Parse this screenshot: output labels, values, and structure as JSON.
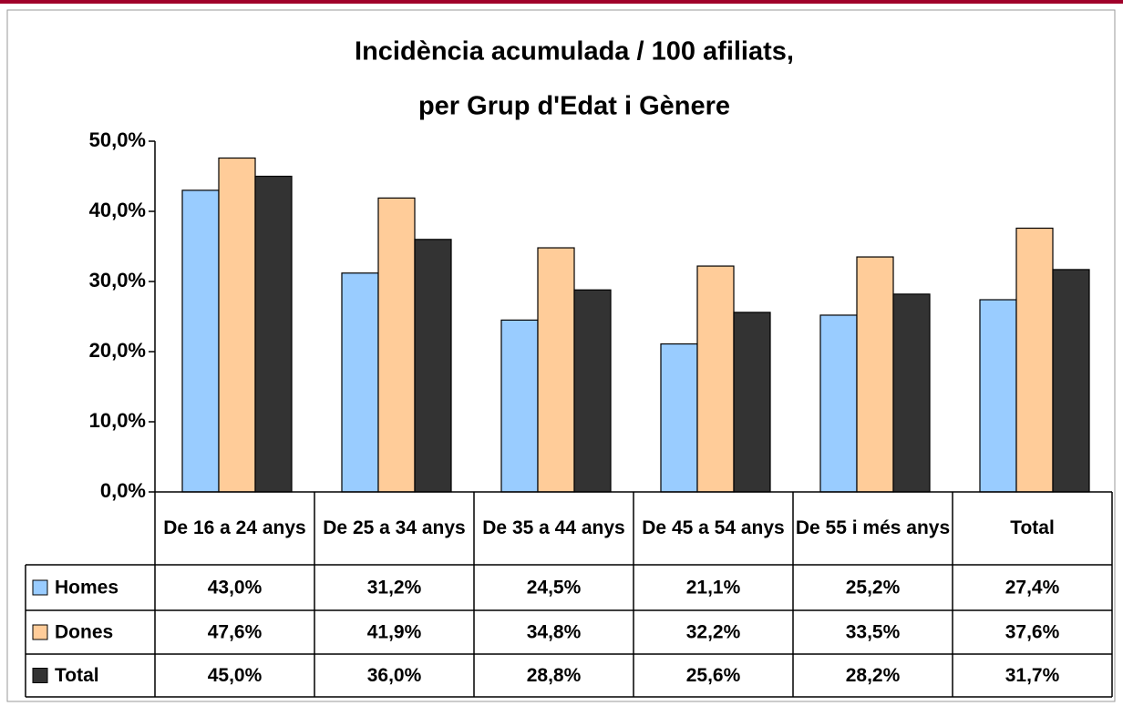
{
  "chart_data": {
    "type": "bar",
    "title": [
      "Incidència acumulada / 100 afiliats,",
      "per Grup d'Edat i Gènere"
    ],
    "categories": [
      "De 16 a 24 anys",
      "De 25 a 34 anys",
      "De 35 a 44 anys",
      "De 45 a 54 anys",
      "De 55 i més anys",
      "Total"
    ],
    "series": [
      {
        "name": "Homes",
        "color": "#99ccff",
        "values": [
          43.0,
          31.2,
          24.5,
          21.1,
          25.2,
          27.4
        ],
        "value_labels": [
          "43,0%",
          "31,2%",
          "24,5%",
          "21,1%",
          "25,2%",
          "27,4%"
        ]
      },
      {
        "name": "Dones",
        "color": "#ffcc99",
        "values": [
          47.6,
          41.9,
          34.8,
          32.2,
          33.5,
          37.6
        ],
        "value_labels": [
          "47,6%",
          "41,9%",
          "34,8%",
          "32,2%",
          "33,5%",
          "37,6%"
        ]
      },
      {
        "name": "Total",
        "color": "#333333",
        "values": [
          45.0,
          36.0,
          28.8,
          25.6,
          28.2,
          31.7
        ],
        "value_labels": [
          "45,0%",
          "36,0%",
          "28,8%",
          "25,6%",
          "28,2%",
          "31,7%"
        ]
      }
    ],
    "ylim": [
      0,
      50
    ],
    "yticks": [
      {
        "value": 0,
        "label": "0,0%"
      },
      {
        "value": 10,
        "label": "10,0%"
      },
      {
        "value": 20,
        "label": "20,0%"
      },
      {
        "value": 30,
        "label": "30,0%"
      },
      {
        "value": 40,
        "label": "40,0%"
      },
      {
        "value": 50,
        "label": "50,0%"
      }
    ],
    "grid": false
  }
}
